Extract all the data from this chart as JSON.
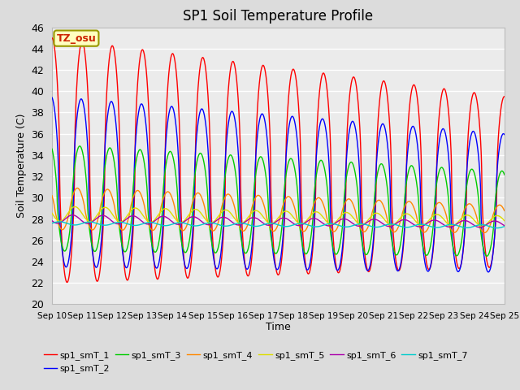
{
  "title": "SP1 Soil Temperature Profile",
  "xlabel": "Time",
  "ylabel": "Soil Temperature (C)",
  "ylim": [
    20,
    46
  ],
  "x_tick_labels": [
    "Sep 10",
    "Sep 11",
    "Sep 12",
    "Sep 13",
    "Sep 14",
    "Sep 15",
    "Sep 16",
    "Sep 17",
    "Sep 18",
    "Sep 19",
    "Sep 20",
    "Sep 21",
    "Sep 22",
    "Sep 23",
    "Sep 24",
    "Sep 25"
  ],
  "tz_annotation": "TZ_osu",
  "series": [
    {
      "label": "sp1_smT_1",
      "color": "#FF0000"
    },
    {
      "label": "sp1_smT_2",
      "color": "#0000FF"
    },
    {
      "label": "sp1_smT_3",
      "color": "#00CC00"
    },
    {
      "label": "sp1_smT_4",
      "color": "#FF8800"
    },
    {
      "label": "sp1_smT_5",
      "color": "#DDDD00"
    },
    {
      "label": "sp1_smT_6",
      "color": "#AA00AA"
    },
    {
      "label": "sp1_smT_7",
      "color": "#00CCCC"
    }
  ],
  "bg_color": "#DCDCDC",
  "plot_bg_color": "#EBEBEB",
  "grid_color": "#FFFFFF"
}
